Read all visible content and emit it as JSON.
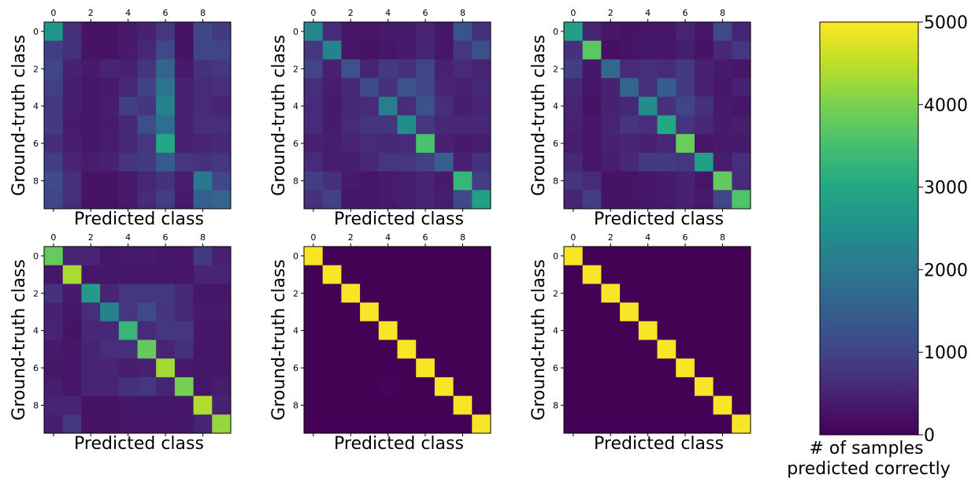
{
  "figure": {
    "colorbar": {
      "ticks": [
        "0",
        "1000",
        "2000",
        "3000",
        "4000",
        "5000"
      ],
      "label_line1": "# of samples",
      "label_line2": "predicted correctly"
    }
  },
  "chart_data": [
    {
      "type": "heatmap",
      "xlabel": "Predicted class",
      "ylabel": "Ground-truth class",
      "x_ticks": [
        "0",
        "2",
        "4",
        "6",
        "8"
      ],
      "y_ticks": [
        "0",
        "2",
        "4",
        "6",
        "8"
      ],
      "color_range": [
        0,
        5000
      ],
      "matrix": [
        [
          2600,
          700,
          250,
          250,
          350,
          450,
          800,
          250,
          1050,
          850
        ],
        [
          900,
          700,
          250,
          250,
          350,
          550,
          1100,
          250,
          1000,
          1000
        ],
        [
          1050,
          450,
          350,
          500,
          450,
          750,
          1600,
          350,
          700,
          800
        ],
        [
          950,
          400,
          300,
          350,
          550,
          950,
          1900,
          450,
          600,
          650
        ],
        [
          800,
          400,
          300,
          400,
          900,
          750,
          2200,
          450,
          600,
          500
        ],
        [
          850,
          350,
          300,
          350,
          550,
          1200,
          1800,
          450,
          650,
          650
        ],
        [
          650,
          400,
          300,
          400,
          550,
          800,
          3000,
          450,
          500,
          550
        ],
        [
          900,
          500,
          400,
          450,
          750,
          850,
          1400,
          800,
          700,
          800
        ],
        [
          1150,
          650,
          250,
          250,
          350,
          550,
          700,
          400,
          2000,
          1050
        ],
        [
          1000,
          650,
          250,
          250,
          350,
          600,
          900,
          350,
          1500,
          1600
        ]
      ]
    },
    {
      "type": "heatmap",
      "xlabel": "Predicted class",
      "ylabel": "Ground-truth class",
      "x_ticks": [
        "0",
        "2",
        "4",
        "6",
        "8"
      ],
      "y_ticks": [
        "0",
        "2",
        "4",
        "6",
        "8"
      ],
      "color_range": [
        0,
        5000
      ],
      "matrix": [
        [
          2300,
          600,
          300,
          300,
          350,
          350,
          500,
          300,
          1300,
          700
        ],
        [
          800,
          2200,
          300,
          250,
          300,
          350,
          500,
          300,
          800,
          1200
        ],
        [
          1000,
          450,
          1250,
          500,
          850,
          700,
          1000,
          450,
          600,
          500
        ],
        [
          650,
          400,
          550,
          1150,
          700,
          1300,
          1000,
          500,
          450,
          550
        ],
        [
          600,
          350,
          550,
          600,
          2100,
          650,
          1250,
          650,
          400,
          500
        ],
        [
          600,
          350,
          600,
          750,
          750,
          2400,
          800,
          550,
          550,
          550
        ],
        [
          450,
          400,
          500,
          600,
          550,
          600,
          3550,
          450,
          350,
          400
        ],
        [
          600,
          400,
          400,
          550,
          800,
          800,
          950,
          1500,
          450,
          700
        ],
        [
          900,
          700,
          350,
          300,
          350,
          400,
          500,
          350,
          3300,
          900
        ],
        [
          700,
          950,
          300,
          300,
          350,
          400,
          500,
          400,
          1100,
          2800
        ]
      ]
    },
    {
      "type": "heatmap",
      "xlabel": "Predicted class",
      "ylabel": "Ground-truth class",
      "x_ticks": [
        "0",
        "2",
        "4",
        "6",
        "8"
      ],
      "y_ticks": [
        "0",
        "2",
        "4",
        "6",
        "8"
      ],
      "color_range": [
        0,
        5000
      ],
      "matrix": [
        [
          2800,
          500,
          300,
          250,
          300,
          300,
          500,
          300,
          1100,
          500
        ],
        [
          700,
          3700,
          200,
          250,
          300,
          300,
          400,
          250,
          550,
          800
        ],
        [
          900,
          300,
          1700,
          600,
          650,
          600,
          850,
          450,
          350,
          300
        ],
        [
          550,
          300,
          450,
          1600,
          650,
          1450,
          850,
          450,
          300,
          450
        ],
        [
          500,
          250,
          450,
          550,
          2400,
          700,
          1000,
          700,
          350,
          300
        ],
        [
          450,
          300,
          500,
          750,
          650,
          3000,
          750,
          550,
          350,
          400
        ],
        [
          400,
          300,
          450,
          500,
          450,
          550,
          3850,
          300,
          350,
          350
        ],
        [
          550,
          300,
          400,
          550,
          850,
          850,
          800,
          2800,
          400,
          650
        ],
        [
          750,
          600,
          250,
          250,
          300,
          350,
          450,
          300,
          3800,
          600
        ],
        [
          500,
          900,
          250,
          250,
          300,
          350,
          450,
          350,
          1000,
          3600
        ]
      ]
    },
    {
      "type": "heatmap",
      "xlabel": "Predicted class",
      "ylabel": "Ground-truth class",
      "x_ticks": [
        "0",
        "2",
        "4",
        "6",
        "8"
      ],
      "y_ticks": [
        "0",
        "2",
        "4",
        "6",
        "8"
      ],
      "color_range": [
        0,
        5000
      ],
      "matrix": [
        [
          3800,
          500,
          500,
          300,
          350,
          350,
          300,
          300,
          850,
          450
        ],
        [
          300,
          4350,
          300,
          300,
          300,
          300,
          300,
          300,
          500,
          500
        ],
        [
          700,
          350,
          2700,
          500,
          800,
          800,
          800,
          550,
          300,
          300
        ],
        [
          450,
          300,
          650,
          2200,
          800,
          1150,
          750,
          550,
          350,
          350
        ],
        [
          500,
          250,
          550,
          550,
          3300,
          600,
          800,
          800,
          300,
          300
        ],
        [
          350,
          300,
          500,
          650,
          650,
          3800,
          500,
          700,
          300,
          300
        ],
        [
          300,
          300,
          500,
          500,
          400,
          450,
          4300,
          350,
          300,
          300
        ],
        [
          400,
          300,
          500,
          500,
          700,
          800,
          500,
          3950,
          300,
          400
        ],
        [
          500,
          500,
          250,
          250,
          300,
          300,
          300,
          300,
          4400,
          450
        ],
        [
          400,
          800,
          250,
          250,
          300,
          300,
          300,
          300,
          500,
          4200
        ]
      ]
    },
    {
      "type": "heatmap",
      "xlabel": "Predicted class",
      "ylabel": "Ground-truth class",
      "x_ticks": [
        "0",
        "2",
        "4",
        "6",
        "8"
      ],
      "y_ticks": [
        "0",
        "2",
        "4",
        "6",
        "8"
      ],
      "color_range": [
        0,
        5000
      ],
      "matrix": [
        [
          4950,
          10,
          10,
          10,
          10,
          10,
          10,
          10,
          10,
          10
        ],
        [
          10,
          4950,
          10,
          10,
          10,
          10,
          10,
          10,
          10,
          10
        ],
        [
          10,
          10,
          4950,
          10,
          10,
          10,
          10,
          10,
          10,
          10
        ],
        [
          10,
          10,
          10,
          4950,
          10,
          10,
          10,
          10,
          10,
          10
        ],
        [
          10,
          10,
          10,
          10,
          4950,
          10,
          10,
          10,
          10,
          10
        ],
        [
          10,
          10,
          10,
          10,
          10,
          4950,
          10,
          10,
          10,
          10
        ],
        [
          10,
          10,
          10,
          10,
          10,
          10,
          4950,
          10,
          10,
          10
        ],
        [
          10,
          10,
          10,
          10,
          60,
          10,
          10,
          4950,
          10,
          10
        ],
        [
          10,
          10,
          10,
          10,
          10,
          10,
          10,
          10,
          4950,
          10
        ],
        [
          10,
          10,
          10,
          10,
          10,
          10,
          10,
          10,
          10,
          4950
        ]
      ]
    },
    {
      "type": "heatmap",
      "xlabel": "Predicted class",
      "ylabel": "Ground-truth class",
      "x_ticks": [
        "0",
        "2",
        "4",
        "6",
        "8"
      ],
      "y_ticks": [
        "0",
        "2",
        "4",
        "6",
        "8"
      ],
      "color_range": [
        0,
        5000
      ],
      "matrix": [
        [
          4950,
          10,
          10,
          10,
          10,
          10,
          10,
          10,
          10,
          10
        ],
        [
          10,
          4950,
          10,
          10,
          10,
          10,
          10,
          10,
          10,
          10
        ],
        [
          10,
          10,
          4950,
          10,
          10,
          10,
          10,
          10,
          10,
          10
        ],
        [
          10,
          10,
          10,
          4950,
          10,
          10,
          10,
          10,
          10,
          10
        ],
        [
          10,
          10,
          10,
          10,
          4950,
          10,
          10,
          10,
          10,
          10
        ],
        [
          10,
          10,
          10,
          10,
          10,
          4950,
          10,
          10,
          10,
          10
        ],
        [
          10,
          10,
          10,
          10,
          10,
          10,
          4950,
          10,
          10,
          10
        ],
        [
          10,
          10,
          10,
          10,
          10,
          10,
          10,
          4950,
          10,
          10
        ],
        [
          10,
          10,
          10,
          10,
          10,
          10,
          10,
          10,
          4950,
          10
        ],
        [
          10,
          10,
          10,
          10,
          10,
          10,
          10,
          10,
          10,
          4950
        ]
      ]
    }
  ]
}
